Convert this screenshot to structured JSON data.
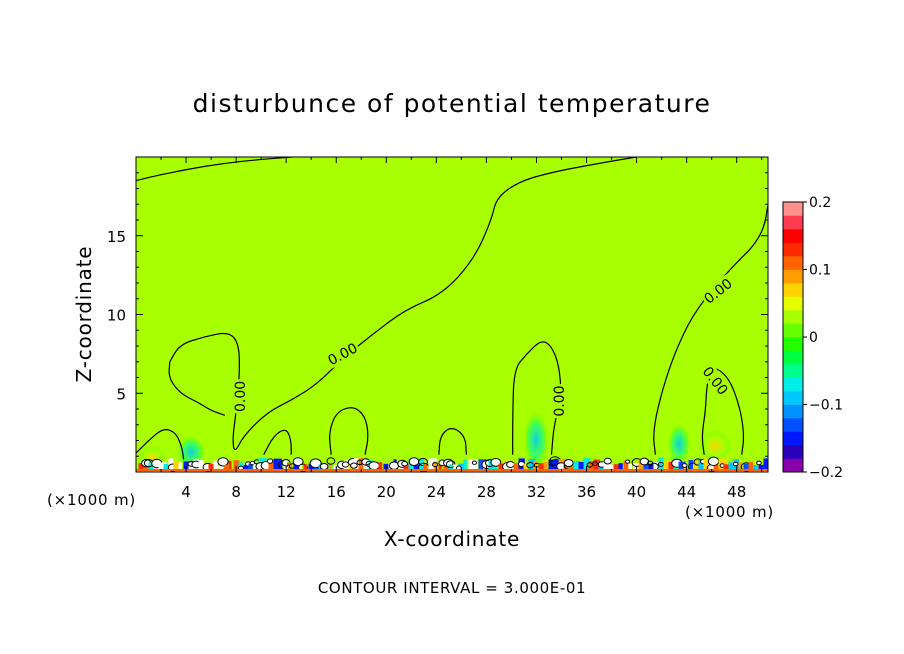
{
  "chart_data": {
    "type": "heatmap",
    "title": "disturbunce of potential temperature",
    "xlabel": "X-coordinate",
    "ylabel": "Z-coordinate",
    "x_unit": "(×1000 m)",
    "footer": "CONTOUR INTERVAL = 3.000E-01",
    "xlim": [
      0,
      50.5
    ],
    "ylim": [
      0,
      20
    ],
    "x_ticks": [
      4,
      8,
      12,
      16,
      20,
      24,
      28,
      32,
      36,
      40,
      44,
      48
    ],
    "y_ticks": [
      5,
      10,
      15
    ],
    "colorbar": {
      "vmin": -0.2,
      "vmax": 0.2,
      "tick_values": [
        0.2,
        0.1,
        0,
        -0.1,
        -0.2
      ],
      "tick_labels": [
        "0.2",
        "0.1",
        "0",
        "−0.1",
        "−0.2"
      ],
      "colors": [
        "#8800aa",
        "#2a00b8",
        "#0018ff",
        "#0050ff",
        "#0092ff",
        "#00c8ff",
        "#00f0e8",
        "#00ff8c",
        "#00ff40",
        "#22ff00",
        "#66ff00",
        "#a8ff00",
        "#e6ff00",
        "#ffd200",
        "#ff9c00",
        "#ff6400",
        "#ff2a00",
        "#ff0000",
        "#ff3c50",
        "#ff9090"
      ]
    },
    "background_value": 0.02,
    "contour_labels": [
      {
        "text": "0.00",
        "x": 16.5,
        "z": 7.5,
        "angle": -28
      },
      {
        "text": "0.00",
        "x": 8.3,
        "z": 4.8,
        "angle": -90
      },
      {
        "text": "0.00",
        "x": 33.8,
        "z": 4.5,
        "angle": -90
      },
      {
        "text": "0.00",
        "x": 46.5,
        "z": 11.5,
        "angle": -38
      },
      {
        "text": "0.00",
        "x": 46.3,
        "z": 5.8,
        "angle": 52
      }
    ],
    "contours_zero": [
      [
        [
          0,
          18.5
        ],
        [
          1.5,
          18.8
        ],
        [
          4,
          19.2
        ],
        [
          7,
          19.6
        ],
        [
          10,
          19.85
        ],
        [
          12.5,
          20
        ]
      ],
      [
        [
          0,
          1.2
        ],
        [
          1,
          2
        ],
        [
          2.2,
          2.8
        ],
        [
          3.2,
          2.5
        ],
        [
          3.7,
          1.5
        ],
        [
          3.8,
          0.8
        ]
      ],
      [
        [
          2.7,
          7
        ],
        [
          3.5,
          8.1
        ],
        [
          5.5,
          8.6
        ],
        [
          7.4,
          8.9
        ],
        [
          8.2,
          8.2
        ],
        [
          8.3,
          6.5
        ],
        [
          8,
          3.8
        ],
        [
          7.7,
          2
        ],
        [
          7.9,
          1.2
        ],
        [
          8.6,
          2.3
        ],
        [
          10.5,
          3.8
        ],
        [
          12.5,
          4.6
        ],
        [
          14.5,
          5.6
        ],
        [
          16.5,
          7.2
        ],
        [
          19,
          8.8
        ],
        [
          21.5,
          10.3
        ],
        [
          24.5,
          11.3
        ],
        [
          27,
          13.5
        ],
        [
          28.4,
          16
        ],
        [
          28.8,
          17.4
        ],
        [
          30.5,
          18.4
        ],
        [
          33,
          19
        ],
        [
          37,
          19.6
        ],
        [
          40,
          20
        ]
      ],
      [
        [
          2.7,
          7
        ],
        [
          2.6,
          6
        ],
        [
          3.5,
          5
        ],
        [
          5,
          4.4
        ],
        [
          6,
          3.9
        ],
        [
          7.1,
          3.6
        ]
      ],
      [
        [
          10.2,
          1.1
        ],
        [
          11,
          2.3
        ],
        [
          12,
          2.8
        ],
        [
          12.4,
          2
        ],
        [
          12.4,
          1.1
        ]
      ],
      [
        [
          15.6,
          1.1
        ],
        [
          15.4,
          2.5
        ],
        [
          16,
          3.8
        ],
        [
          17.3,
          4.2
        ],
        [
          18.3,
          3.6
        ],
        [
          18.6,
          2.3
        ],
        [
          18.3,
          1.1
        ]
      ],
      [
        [
          24.2,
          1.1
        ],
        [
          24.3,
          2.3
        ],
        [
          25.2,
          2.9
        ],
        [
          26.3,
          2.3
        ],
        [
          26.4,
          1.1
        ]
      ],
      [
        [
          30.1,
          1.1
        ],
        [
          30.1,
          3.5
        ],
        [
          30.2,
          6.5
        ],
        [
          31.2,
          7.5
        ],
        [
          32.4,
          8.4
        ],
        [
          33.2,
          8
        ],
        [
          33.8,
          6.8
        ],
        [
          34,
          4.8
        ],
        [
          33.4,
          3
        ],
        [
          33.2,
          1.1
        ]
      ],
      [
        [
          41.5,
          1.1
        ],
        [
          41.3,
          2.5
        ],
        [
          41.9,
          4.8
        ],
        [
          43,
          7.5
        ],
        [
          44.5,
          10
        ],
        [
          46.5,
          12
        ],
        [
          48,
          13.3
        ],
        [
          49.3,
          14.3
        ],
        [
          50.2,
          15.5
        ],
        [
          50.5,
          17
        ]
      ],
      [
        [
          45.4,
          1.1
        ],
        [
          45.2,
          2.3
        ],
        [
          45.5,
          3.8
        ],
        [
          45.6,
          5.5
        ],
        [
          46,
          6.8
        ],
        [
          47.4,
          6
        ],
        [
          48.3,
          4
        ],
        [
          48.6,
          2.3
        ],
        [
          48.4,
          1.1
        ]
      ]
    ]
  }
}
